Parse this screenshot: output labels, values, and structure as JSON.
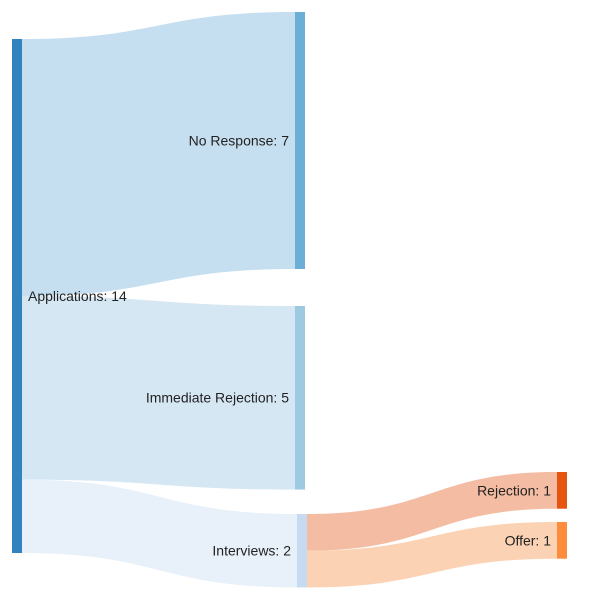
{
  "chart_data": {
    "type": "sankey",
    "nodes": [
      {
        "id": "applications",
        "label": "Applications: 14",
        "value": 14,
        "color": "#3182bd"
      },
      {
        "id": "no_response",
        "label": "No Response: 7",
        "value": 7,
        "color": "#6baed6"
      },
      {
        "id": "immediate_rejection",
        "label": "Immediate Rejection: 5",
        "value": 5,
        "color": "#9ecae1"
      },
      {
        "id": "interviews",
        "label": "Interviews: 2",
        "value": 2,
        "color": "#c6dbef"
      },
      {
        "id": "rejection",
        "label": "Rejection: 1",
        "value": 1,
        "color": "#e6550d"
      },
      {
        "id": "offer",
        "label": "Offer: 1",
        "value": 1,
        "color": "#fd8d3c"
      }
    ],
    "links": [
      {
        "source": "applications",
        "target": "no_response",
        "value": 7,
        "color": "#c6dff0"
      },
      {
        "source": "applications",
        "target": "immediate_rejection",
        "value": 5,
        "color": "#d6e7f4"
      },
      {
        "source": "applications",
        "target": "interviews",
        "value": 2,
        "color": "#e8f0f9"
      },
      {
        "source": "interviews",
        "target": "rejection",
        "value": 1,
        "color": "#f4bca3"
      },
      {
        "source": "interviews",
        "target": "offer",
        "value": 1,
        "color": "#fbd2b3"
      }
    ]
  }
}
